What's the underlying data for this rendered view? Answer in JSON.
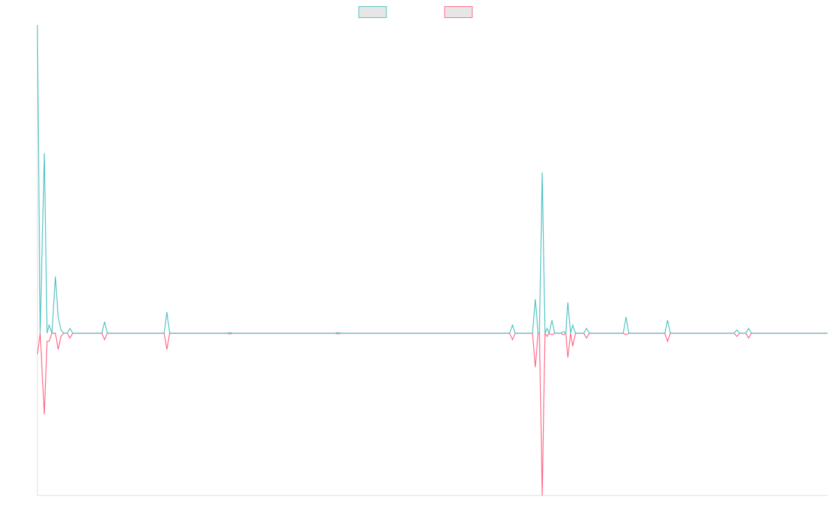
{
  "chart_data": {
    "type": "line",
    "xlim": [
      0,
      1141
    ],
    "ylim": [
      -100,
      190
    ],
    "legend": "top",
    "x": [
      0,
      4,
      10,
      14,
      17,
      21,
      26,
      30,
      34,
      38,
      43,
      47,
      51,
      93,
      97,
      101,
      183,
      187,
      191,
      274,
      278,
      282,
      430,
      434,
      438,
      682,
      686,
      690,
      715,
      719,
      723,
      725,
      729,
      733,
      736,
      739,
      743,
      747,
      756,
      760,
      763,
      766,
      770,
      773,
      777,
      789,
      793,
      797,
      846,
      850,
      854,
      906,
      910,
      914,
      1006,
      1010,
      1014,
      1023,
      1027,
      1031,
      1141
    ],
    "series": [
      {
        "color": "#4bc0c0",
        "values": [
          190,
          0,
          111,
          0,
          5,
          0,
          35,
          10,
          2,
          0,
          0,
          3,
          0,
          0,
          7,
          0,
          0,
          13,
          0,
          0,
          0.5,
          0,
          0,
          0.5,
          0,
          0,
          5,
          0,
          0,
          21,
          0,
          0,
          99,
          0,
          3,
          0,
          8,
          0,
          0,
          1,
          0,
          19,
          0,
          5,
          0,
          0,
          3,
          0,
          0,
          10,
          0,
          0,
          8,
          0,
          0,
          2,
          0,
          0,
          3,
          0,
          0
        ]
      },
      {
        "color": "#ff6384",
        "values": [
          -13,
          0,
          -50,
          -5,
          -5,
          0,
          0,
          -10,
          -2,
          0,
          0,
          -3,
          0,
          0,
          -4,
          0,
          0,
          -10,
          0,
          0,
          -0.5,
          0,
          0,
          -0.5,
          0,
          0,
          -4,
          0,
          0,
          -21,
          0,
          0,
          -100,
          0,
          -2,
          0,
          -1,
          0,
          0,
          -1,
          0,
          -15,
          0,
          -8,
          0,
          0,
          -3,
          0,
          0,
          -1,
          0,
          0,
          -5,
          0,
          0,
          -2,
          0,
          0,
          -3,
          0,
          0
        ]
      }
    ]
  }
}
